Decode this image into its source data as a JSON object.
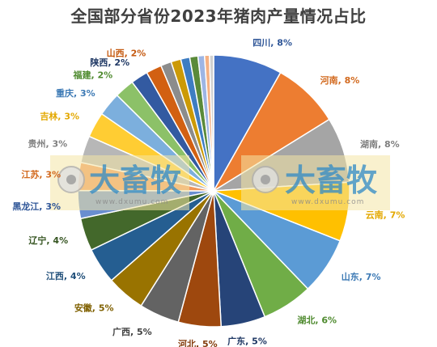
{
  "chart_data": {
    "type": "pie",
    "title": "全国部分省份2023年猪肉产量情况占比",
    "slices": [
      {
        "label": "四川, 8%",
        "value": 8.4,
        "color": "#4472C4",
        "text_color": "#2E5597"
      },
      {
        "label": "河南, 8%",
        "value": 8.2,
        "color": "#ED7D31",
        "text_color": "#D2691E"
      },
      {
        "label": "湖南, 8%",
        "value": 8.0,
        "color": "#A5A5A5",
        "text_color": "#7F7F7F"
      },
      {
        "label": "云南, 7%",
        "value": 7.2,
        "color": "#FFC000",
        "text_color": "#E3A800"
      },
      {
        "label": "山东, 7%",
        "value": 7.0,
        "color": "#5B9BD5",
        "text_color": "#3D7AB5"
      },
      {
        "label": "湖北, 6%",
        "value": 6.2,
        "color": "#70AD47",
        "text_color": "#4E8A2E"
      },
      {
        "label": "广东, 5%",
        "value": 5.4,
        "color": "#264478",
        "text_color": "#1F3864"
      },
      {
        "label": "河北, 5%",
        "value": 5.2,
        "color": "#9E480E",
        "text_color": "#843C0C"
      },
      {
        "label": "广西, 5%",
        "value": 4.9,
        "color": "#636363",
        "text_color": "#404040"
      },
      {
        "label": "安徽, 5%",
        "value": 4.7,
        "color": "#997300",
        "text_color": "#7F6000"
      },
      {
        "label": "江西, 4%",
        "value": 4.4,
        "color": "#255E91",
        "text_color": "#1F4E79"
      },
      {
        "label": "辽宁, 4%",
        "value": 4.0,
        "color": "#43682B",
        "text_color": "#375623"
      },
      {
        "label": "黑龙江, 3%",
        "value": 3.4,
        "color": "#698ED0",
        "text_color": "#2E5597"
      },
      {
        "label": "江苏, 3%",
        "value": 3.4,
        "color": "#F1975A",
        "text_color": "#D2691E"
      },
      {
        "label": "贵州, 3%",
        "value": 3.3,
        "color": "#B7B7B7",
        "text_color": "#7F7F7F"
      },
      {
        "label": "吉林, 3%",
        "value": 3.1,
        "color": "#FFCD33",
        "text_color": "#E3A800"
      },
      {
        "label": "重庆, 3%",
        "value": 2.9,
        "color": "#7CAFDD",
        "text_color": "#3D7AB5"
      },
      {
        "label": "福建, 2%",
        "value": 2.4,
        "color": "#8CC168",
        "text_color": "#4E8A2E"
      },
      {
        "label": "陕西, 2%",
        "value": 2.1,
        "color": "#335AA1",
        "text_color": "#1F3864"
      },
      {
        "label": "山西, 2%",
        "value": 1.9,
        "color": "#D26012",
        "text_color": "#C55A11"
      },
      {
        "label": "",
        "value": 1.3,
        "color": "#8C8C8C",
        "text_color": "#595959"
      },
      {
        "label": "",
        "value": 1.2,
        "color": "#CC9A06",
        "text_color": "#7F6000"
      },
      {
        "label": "",
        "value": 1.1,
        "color": "#3E7DC2",
        "text_color": "#1F4E79"
      },
      {
        "label": "",
        "value": 1.0,
        "color": "#5A8A3A",
        "text_color": "#375623"
      },
      {
        "label": "",
        "value": 0.8,
        "color": "#9DB5E4",
        "text_color": "#2E5597"
      },
      {
        "label": "",
        "value": 0.6,
        "color": "#F5B183",
        "text_color": "#D2691E"
      },
      {
        "label": "",
        "value": 0.5,
        "color": "#D0D0D0",
        "text_color": "#7F7F7F"
      }
    ],
    "legend": "none"
  },
  "watermark": {
    "brand": "大畜牧",
    "site": "www.dxumu.com"
  }
}
